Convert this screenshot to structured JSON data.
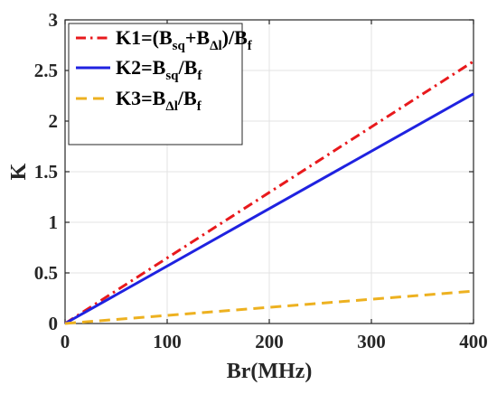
{
  "chart_data": {
    "type": "line",
    "title": "",
    "xlabel": "Br(MHz)",
    "ylabel": "K",
    "xlim": [
      0,
      400
    ],
    "ylim": [
      0,
      3
    ],
    "xticks": [
      0,
      100,
      200,
      300,
      400
    ],
    "yticks": [
      0,
      0.5,
      1,
      1.5,
      2,
      2.5,
      3
    ],
    "xtick_labels": [
      "0",
      "100",
      "200",
      "300",
      "400"
    ],
    "ytick_labels": [
      "0",
      "0.5",
      "1",
      "1.5",
      "2",
      "2.5",
      "3"
    ],
    "grid": true,
    "legend_position": "top-left",
    "series": [
      {
        "name": "K1=(Bsq+BΔl)/Bf",
        "legend": {
          "parts": [
            {
              "text": "K1=(B",
              "sub": false
            },
            {
              "text": "sq",
              "sub": true
            },
            {
              "text": "+B",
              "sub": false
            },
            {
              "text": "Δl",
              "sub": true
            },
            {
              "text": ")/B",
              "sub": false
            },
            {
              "text": "f",
              "sub": true
            }
          ]
        },
        "color": "#e8191c",
        "style": "dashdot",
        "x": [
          0,
          400
        ],
        "y": [
          0,
          2.59
        ]
      },
      {
        "name": "K2=Bsq/Bf",
        "legend": {
          "parts": [
            {
              "text": "K2=B",
              "sub": false
            },
            {
              "text": "sq",
              "sub": true
            },
            {
              "text": "/B",
              "sub": false
            },
            {
              "text": "f",
              "sub": true
            }
          ]
        },
        "color": "#1f22e0",
        "style": "solid",
        "x": [
          0,
          400
        ],
        "y": [
          0,
          2.27
        ]
      },
      {
        "name": "K3=BΔl/Bf",
        "legend": {
          "parts": [
            {
              "text": "K3=B",
              "sub": false
            },
            {
              "text": "Δl",
              "sub": true
            },
            {
              "text": "/B",
              "sub": false
            },
            {
              "text": "f",
              "sub": true
            }
          ]
        },
        "color": "#edb120",
        "style": "dashed",
        "x": [
          0,
          400
        ],
        "y": [
          0,
          0.32
        ]
      }
    ]
  }
}
